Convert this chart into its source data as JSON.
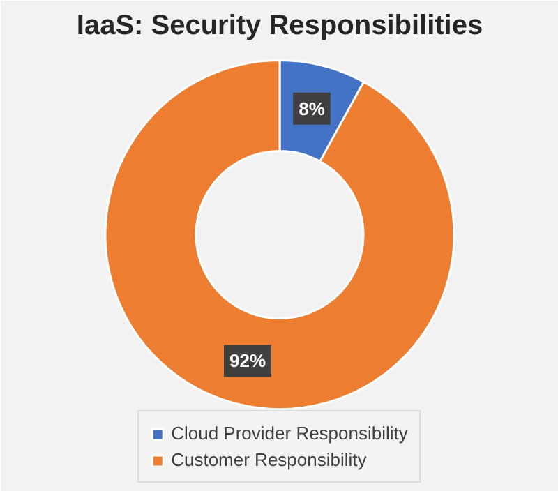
{
  "chart_data": {
    "type": "donut",
    "title": "IaaS: Security Responsibilities",
    "categories": [
      "Cloud Provider Responsibility",
      "Customer Responsibility"
    ],
    "values": [
      8,
      92
    ],
    "colors": [
      "#4472c4",
      "#ed7d31"
    ],
    "value_labels": [
      "8%",
      "92%"
    ],
    "legend": "bottom"
  }
}
